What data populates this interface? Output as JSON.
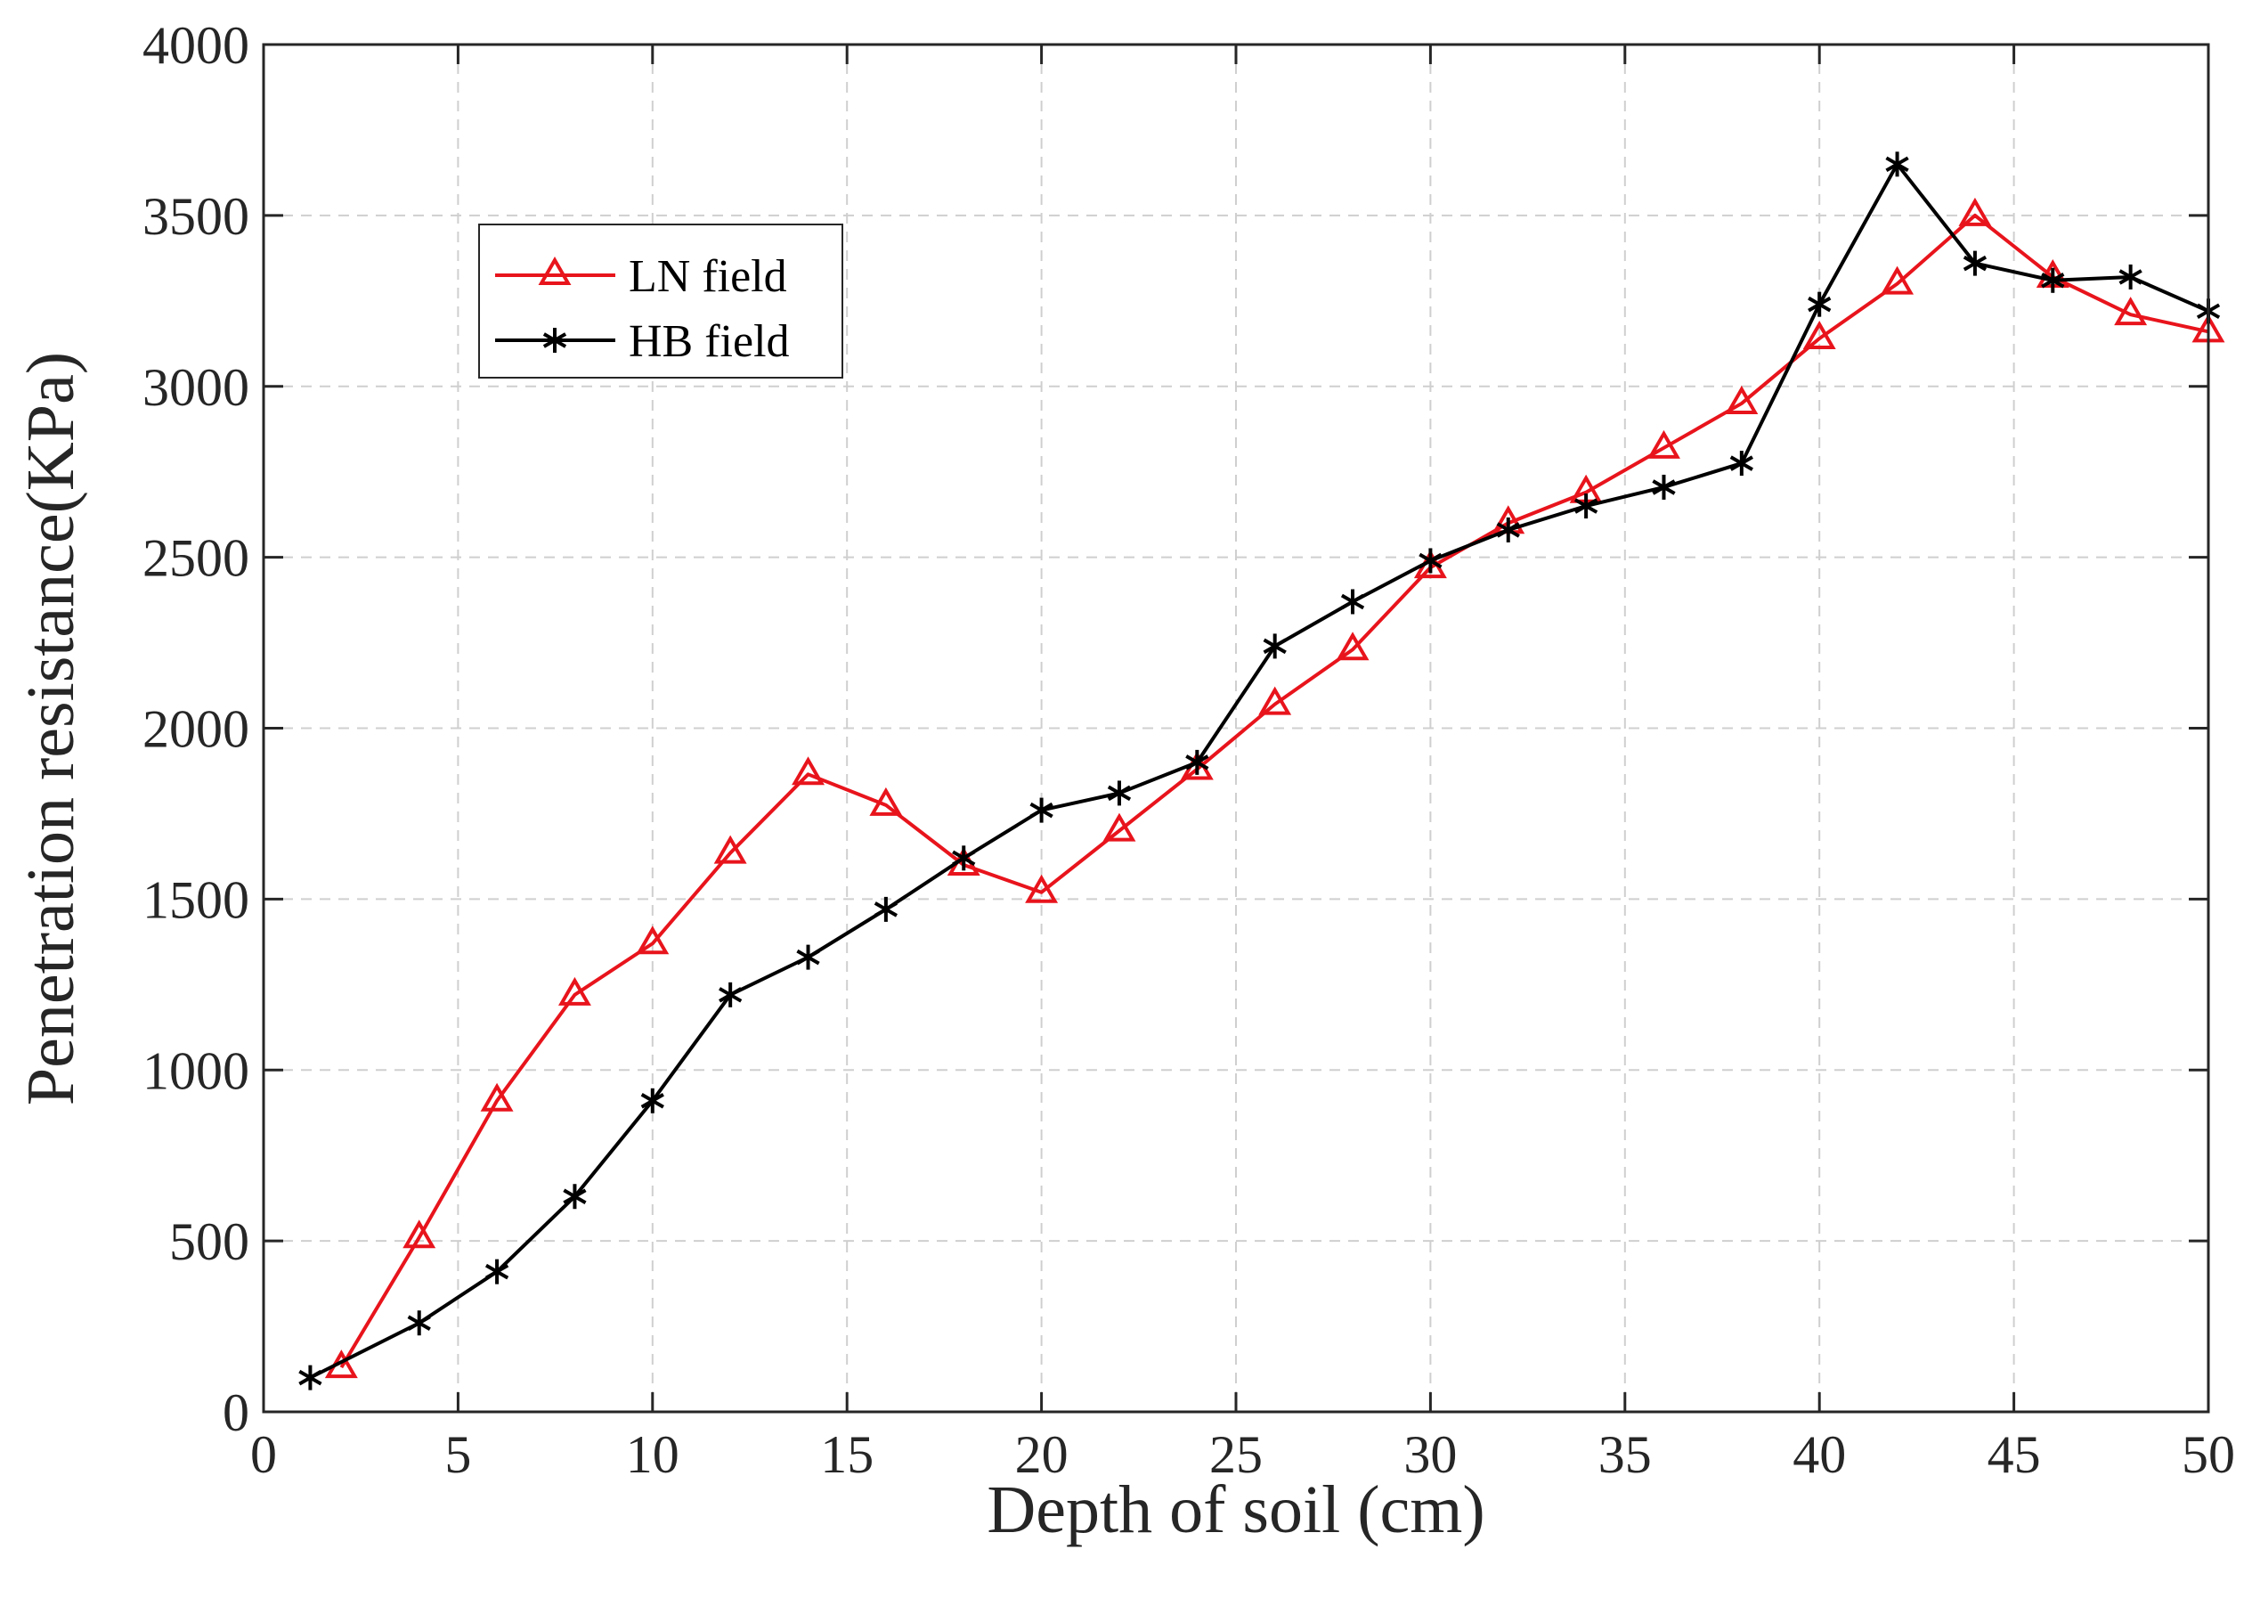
{
  "chart_data": {
    "type": "line",
    "title": "",
    "xlabel": "Depth of soil (cm)",
    "ylabel": "Penetration resistance(KPa)",
    "xlim": [
      0,
      50
    ],
    "ylim": [
      0,
      4000
    ],
    "xticks": [
      0,
      5,
      10,
      15,
      20,
      25,
      30,
      35,
      40,
      45,
      50
    ],
    "yticks": [
      0,
      500,
      1000,
      1500,
      2000,
      2500,
      3000,
      3500,
      4000
    ],
    "grid": true,
    "legend_position": "upper-left",
    "series": [
      {
        "name": "LN field",
        "color": "#e8141c",
        "marker": "triangle",
        "x": [
          2,
          4,
          6,
          8,
          10,
          12,
          14,
          16,
          18,
          20,
          22,
          24,
          26,
          28,
          30,
          32,
          34,
          36,
          38,
          40,
          42,
          44,
          46,
          48,
          50
        ],
        "y": [
          130,
          510,
          910,
          1220,
          1370,
          1635,
          1865,
          1775,
          1600,
          1520,
          1700,
          1880,
          2070,
          2230,
          2470,
          2600,
          2690,
          2820,
          2950,
          3140,
          3300,
          3500,
          3320,
          3210,
          3160
        ]
      },
      {
        "name": "HB field",
        "color": "#000000",
        "marker": "asterisk",
        "x": [
          1.2,
          4,
          6,
          8,
          10,
          12,
          14,
          16,
          18,
          20,
          22,
          24,
          26,
          28,
          30,
          32,
          34,
          36,
          38,
          40,
          42,
          44,
          46,
          48,
          50
        ],
        "y": [
          100,
          260,
          410,
          630,
          910,
          1220,
          1330,
          1470,
          1620,
          1760,
          1810,
          1900,
          2240,
          2370,
          2490,
          2580,
          2650,
          2705,
          2775,
          3240,
          3650,
          3360,
          3310,
          3320,
          3220
        ]
      }
    ]
  }
}
